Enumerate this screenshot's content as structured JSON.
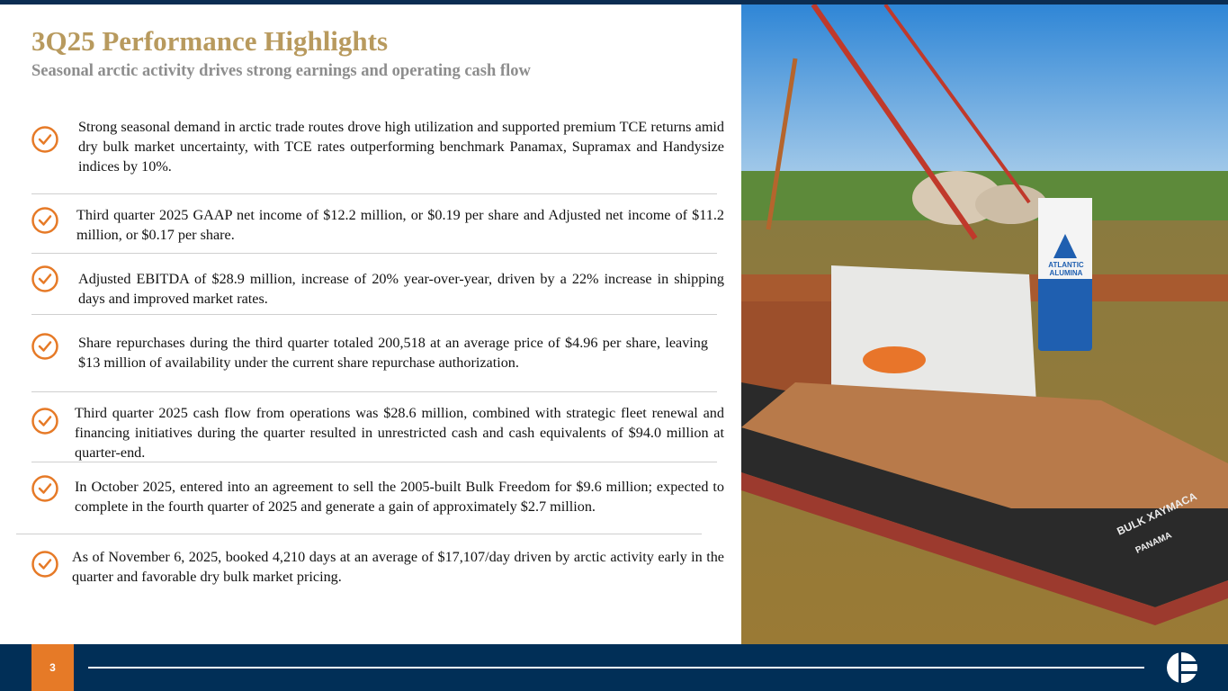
{
  "slide": {
    "title": "3Q25 Performance Highlights",
    "subtitle": "Seasonal arctic activity drives strong earnings and operating cash flow",
    "page_number": "3",
    "accent_color": "#e67a27",
    "title_color": "#b89a5e",
    "navy_color": "#012f57"
  },
  "bullets": [
    {
      "icon": "check-circle-icon",
      "text": "Strong seasonal demand in arctic trade routes drove high utilization and supported premium TCE returns amid dry bulk market uncertainty, with TCE rates outperforming benchmark Panamax, Supramax and Handysize indices by 10%."
    },
    {
      "icon": "check-circle-icon",
      "text": " Third quarter 2025 GAAP net income of $12.2 million, or $0.19 per share and Adjusted net income of $11.2 million, or $0.17 per share."
    },
    {
      "icon": "check-circle-icon",
      "text": "Adjusted EBITDA of $28.9 million, increase of 20% year-over-year, driven by a 22% increase in shipping days and improved market rates."
    },
    {
      "icon": "check-circle-icon",
      "text": "Share repurchases during the third quarter totaled 200,518 at an average price of $4.96 per share, leaving $13 million of availability under the current share repurchase authorization."
    },
    {
      "icon": "check-circle-icon",
      "text": "Third quarter 2025 cash flow from operations was $28.6 million, combined with strategic fleet renewal and financing initiatives during the quarter resulted in unrestricted cash and cash equivalents of $94.0 million at quarter-end."
    },
    {
      "icon": "check-circle-icon",
      "text": "In October 2025, entered into an agreement to sell the 2005-built Bulk Freedom for $9.6 million; expected to complete in the fourth quarter of 2025 and generate a gain of approximately $2.7 million."
    },
    {
      "icon": "check-circle-icon",
      "text": "As of November 6, 2025, booked 4,210 days at an average of $17,107/day driven by arctic activity early in the quarter and favorable dry bulk market pricing."
    }
  ],
  "photo": {
    "ship_name": "BULK XAYMACA",
    "port": "PANAMA",
    "funnel_text": "ATLANTIC ALUMINA"
  }
}
